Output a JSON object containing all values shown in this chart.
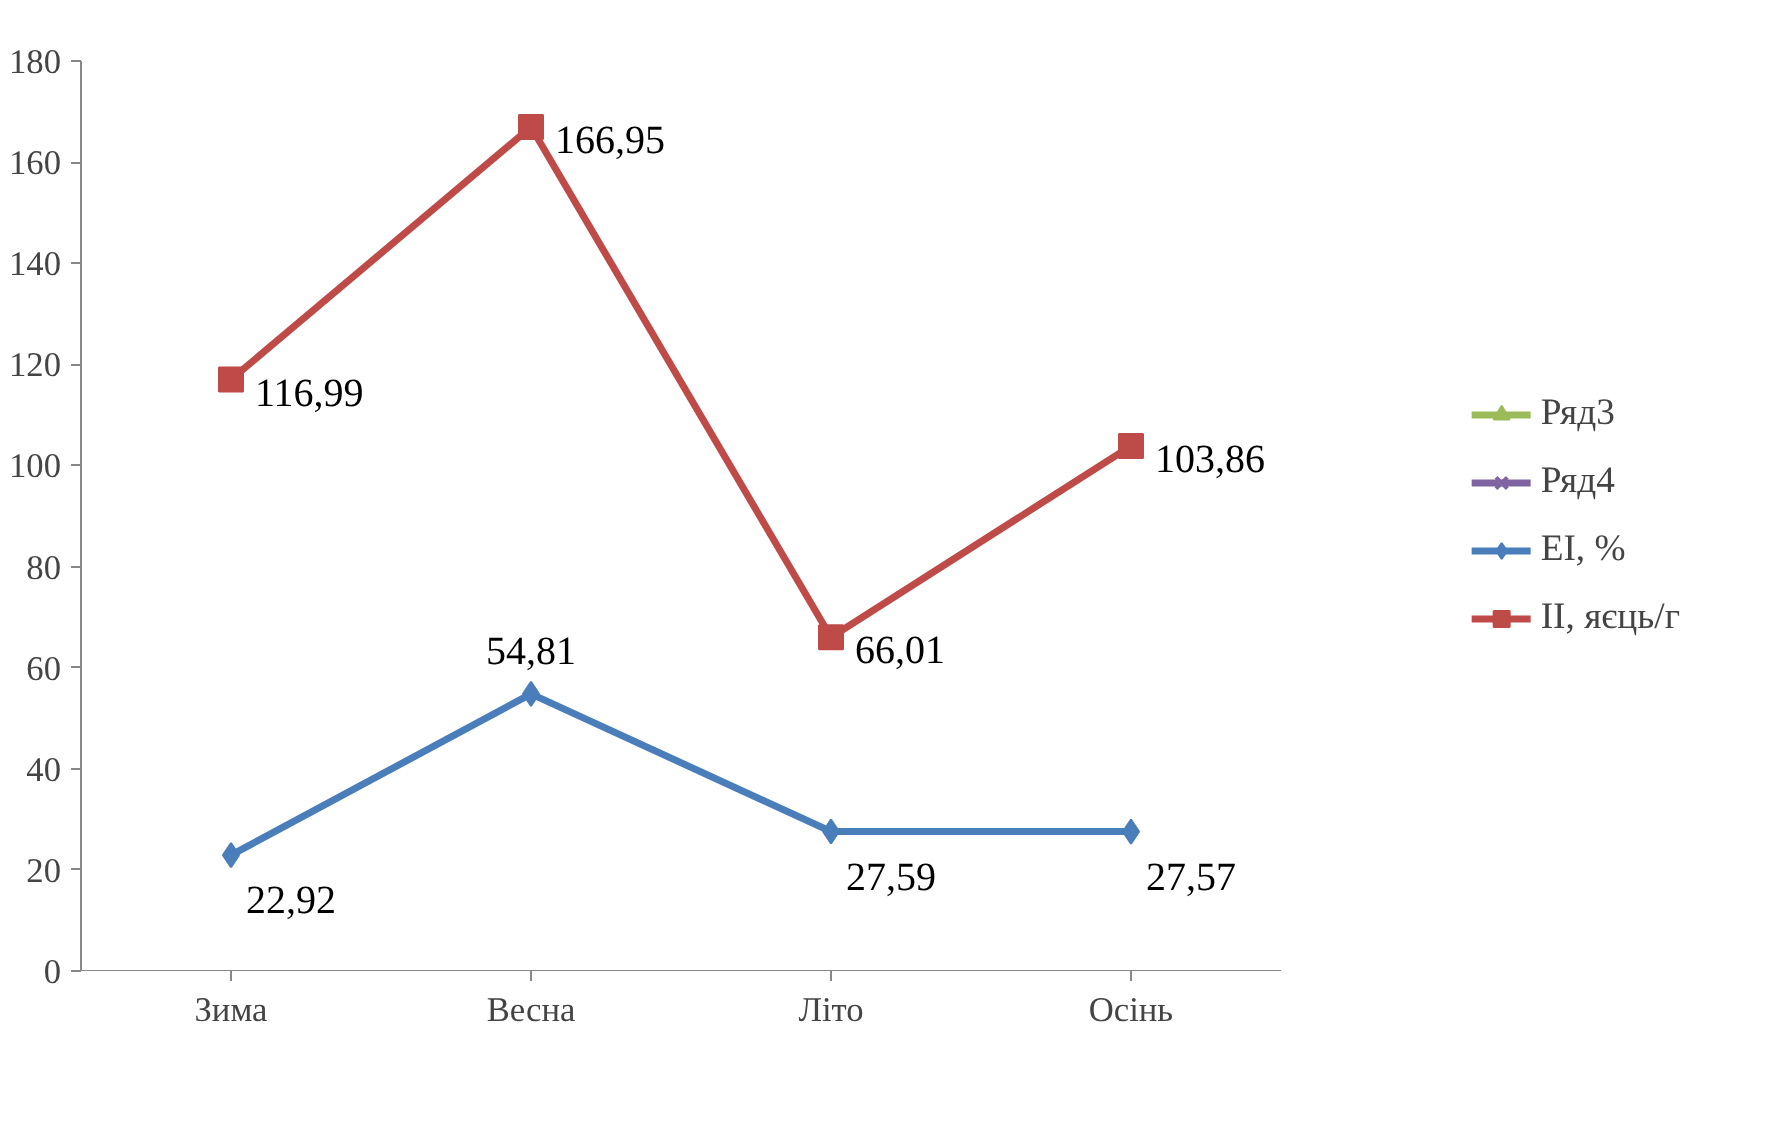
{
  "chart_data": {
    "type": "line",
    "categories": [
      "Зима",
      "Весна",
      "Літо",
      "Осінь"
    ],
    "ylim": [
      0,
      180
    ],
    "yticks": [
      0,
      20,
      40,
      60,
      80,
      100,
      120,
      140,
      160,
      180
    ],
    "grid": false,
    "legend": "right",
    "line_style": "solid",
    "series": [
      {
        "name": "Ряд3",
        "color": "#9bbb59",
        "marker": "triangle",
        "values": [
          null,
          null,
          null,
          null
        ]
      },
      {
        "name": "Ряд4",
        "color": "#8064a2",
        "marker": "cross",
        "values": [
          null,
          null,
          null,
          null
        ]
      },
      {
        "name": "EI, %",
        "color": "#4a7ebb",
        "marker": "diamond",
        "values": [
          22.92,
          54.81,
          27.59,
          27.57
        ],
        "value_labels": [
          "22,92",
          "54,81",
          "27,59",
          "27,57"
        ]
      },
      {
        "name": "ІІ, яєць/г",
        "color": "#be4b48",
        "marker": "square",
        "values": [
          116.99,
          166.95,
          66.01,
          103.86
        ],
        "value_labels": [
          "116,99",
          "166,95",
          "66,01",
          "103,86"
        ]
      }
    ]
  }
}
